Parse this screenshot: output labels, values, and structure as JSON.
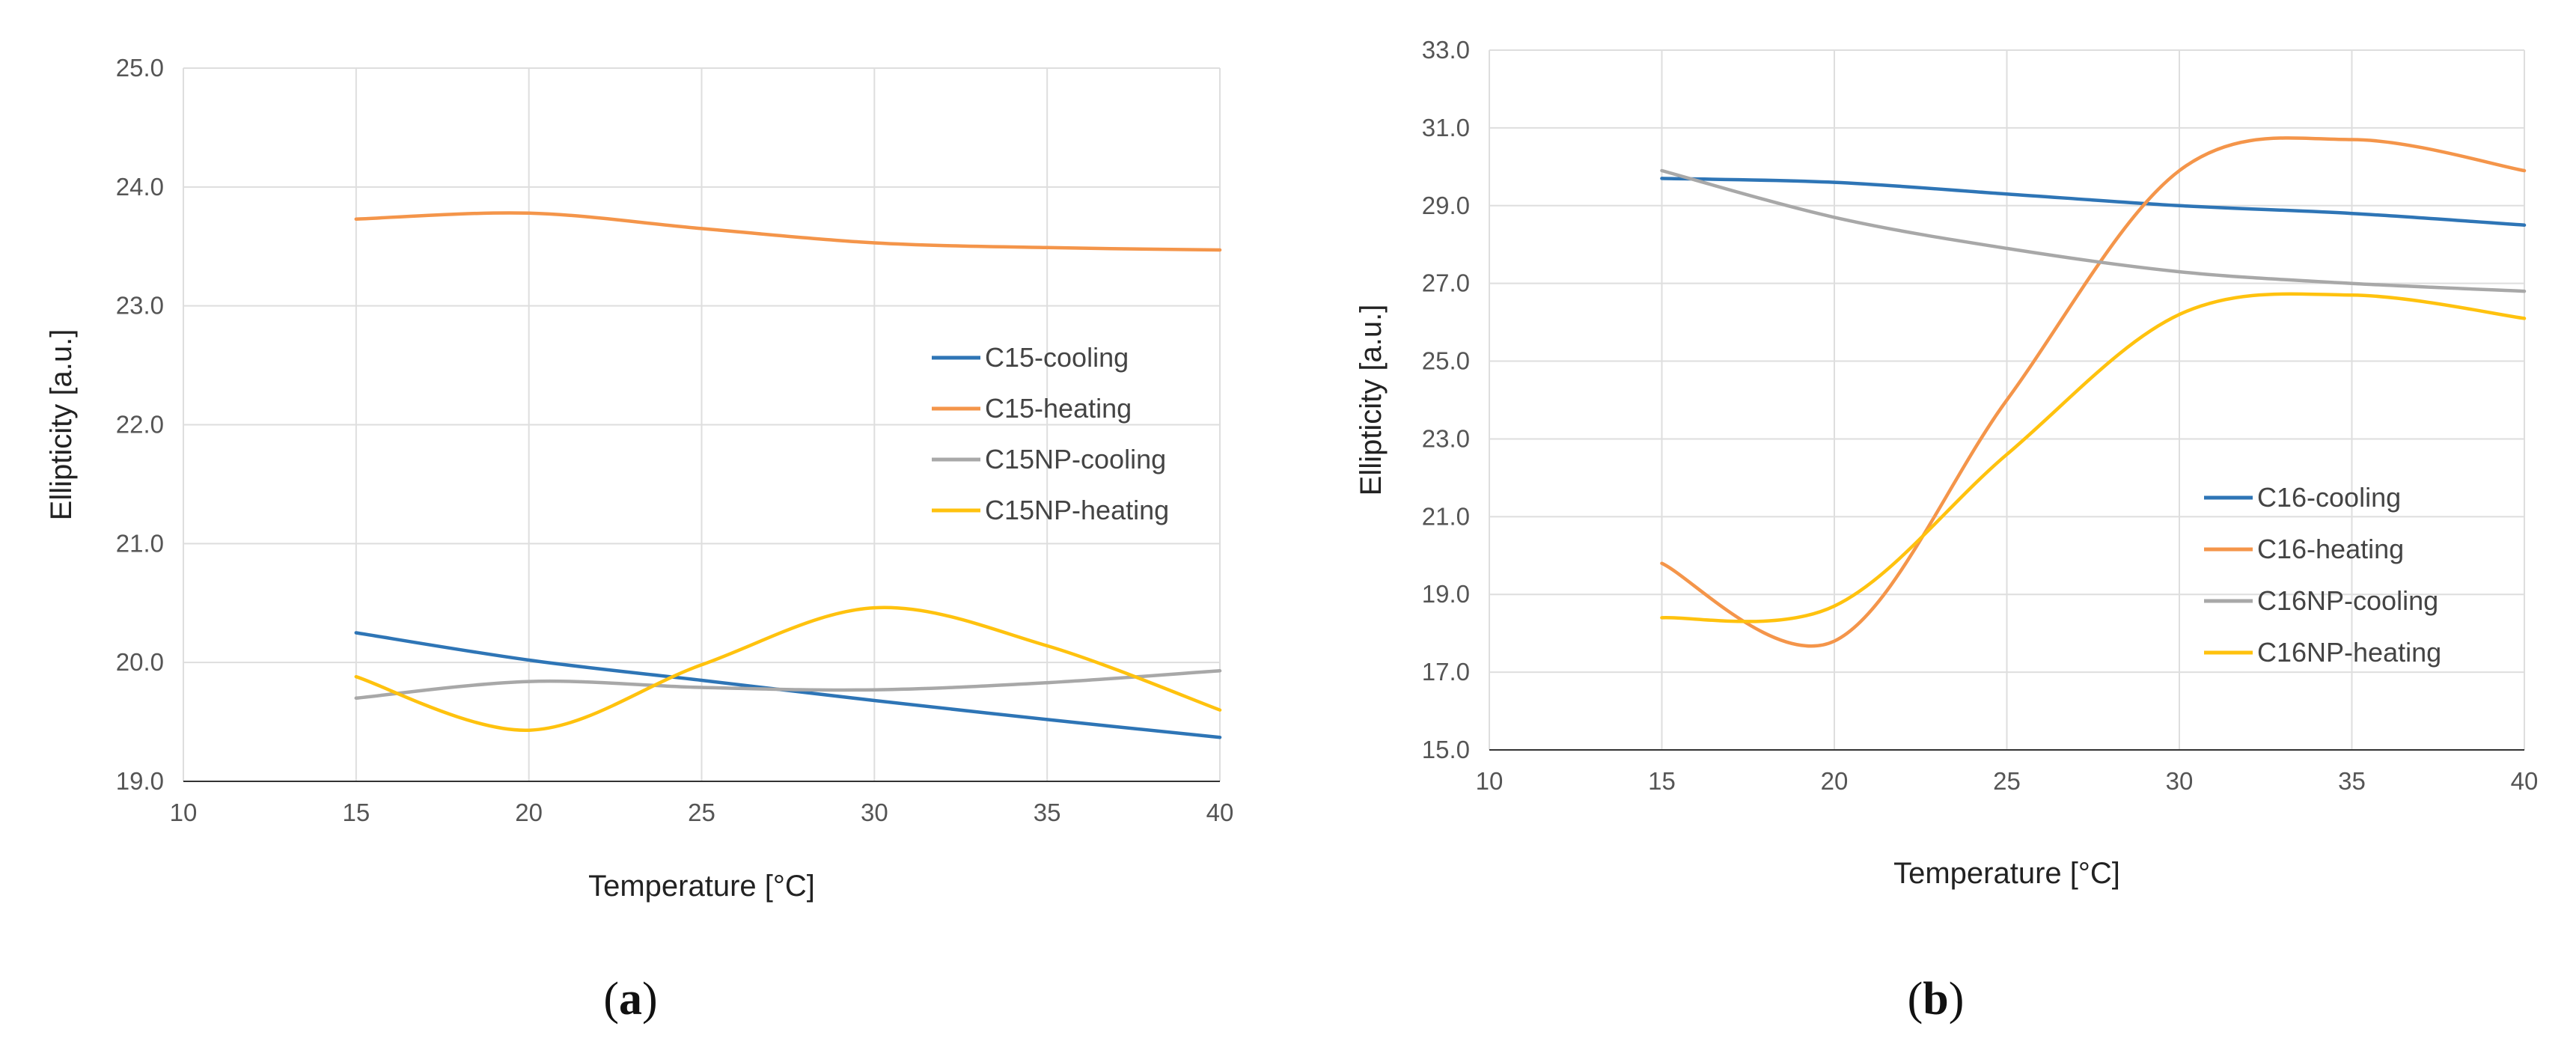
{
  "colors": {
    "cooling": "#2e75b6",
    "heating": "#f4954a",
    "np_cooling": "#a8a8a8",
    "np_heating": "#ffc20e"
  },
  "chart_data": [
    {
      "type": "line",
      "panel_label": "a",
      "xlabel": "Temperature [°C]",
      "ylabel": "Ellipticity [a.u.]",
      "xlim": [
        10,
        40
      ],
      "ylim": [
        19.0,
        25.0
      ],
      "xticks": [
        "10",
        "15",
        "20",
        "25",
        "30",
        "35",
        "40"
      ],
      "yticks": [
        "19.0",
        "20.0",
        "21.0",
        "22.0",
        "23.0",
        "24.0",
        "25.0"
      ],
      "grid": true,
      "legend_position": "center-right",
      "series": [
        {
          "name": "C15-cooling",
          "color_key": "cooling",
          "x": [
            15,
            20,
            25,
            30,
            35,
            40
          ],
          "y": [
            20.25,
            20.02,
            19.85,
            19.68,
            19.52,
            19.37
          ]
        },
        {
          "name": "C15-heating",
          "color_key": "heating",
          "x": [
            15,
            20,
            25,
            30,
            35,
            40
          ],
          "y": [
            23.73,
            23.78,
            23.65,
            23.53,
            23.49,
            23.47
          ]
        },
        {
          "name": "C15NP-cooling",
          "color_key": "np_cooling",
          "x": [
            15,
            20,
            25,
            30,
            35,
            40
          ],
          "y": [
            19.7,
            19.84,
            19.79,
            19.77,
            19.83,
            19.93
          ]
        },
        {
          "name": "C15NP-heating",
          "color_key": "np_heating",
          "x": [
            15,
            20,
            25,
            30,
            35,
            40
          ],
          "y": [
            19.88,
            19.43,
            19.98,
            20.46,
            20.14,
            19.6
          ]
        }
      ]
    },
    {
      "type": "line",
      "panel_label": "b",
      "xlabel": "Temperature [°C]",
      "ylabel": "Ellipticity [a.u.]",
      "xlim": [
        10,
        40
      ],
      "ylim": [
        15.0,
        33.0
      ],
      "xticks": [
        "10",
        "15",
        "20",
        "25",
        "30",
        "35",
        "40"
      ],
      "yticks": [
        "15.0",
        "17.0",
        "19.0",
        "21.0",
        "23.0",
        "25.0",
        "27.0",
        "29.0",
        "31.0",
        "33.0"
      ],
      "grid": true,
      "legend_position": "bottom-right",
      "series": [
        {
          "name": "C16-cooling",
          "color_key": "cooling",
          "x": [
            15,
            20,
            25,
            30,
            35,
            40
          ],
          "y": [
            29.7,
            29.6,
            29.3,
            29.0,
            28.8,
            28.5
          ]
        },
        {
          "name": "C16-heating",
          "color_key": "heating",
          "x": [
            15,
            20,
            25,
            30,
            35,
            40
          ],
          "y": [
            19.8,
            17.8,
            24.0,
            29.9,
            30.7,
            29.9
          ]
        },
        {
          "name": "C16NP-cooling",
          "color_key": "np_cooling",
          "x": [
            15,
            20,
            25,
            30,
            35,
            40
          ],
          "y": [
            29.9,
            28.7,
            27.9,
            27.3,
            27.0,
            26.8
          ]
        },
        {
          "name": "C16NP-heating",
          "color_key": "np_heating",
          "x": [
            15,
            20,
            25,
            30,
            35,
            40
          ],
          "y": [
            18.4,
            18.7,
            22.6,
            26.2,
            26.7,
            26.1
          ]
        }
      ]
    }
  ]
}
